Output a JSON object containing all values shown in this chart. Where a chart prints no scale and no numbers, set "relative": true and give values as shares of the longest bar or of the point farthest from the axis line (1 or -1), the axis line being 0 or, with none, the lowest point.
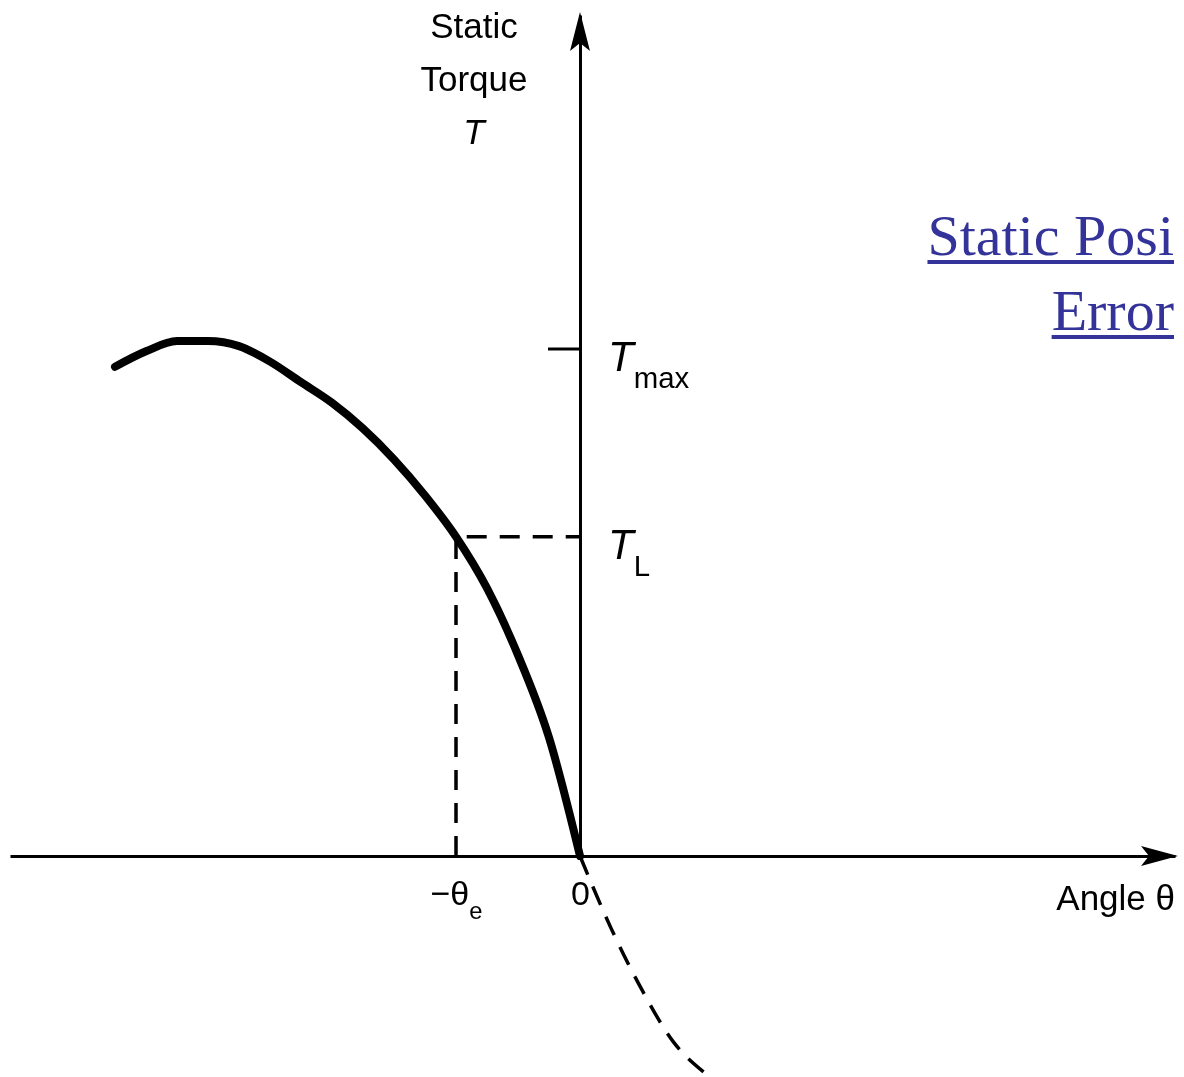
{
  "chart_data": {
    "type": "line",
    "relative": true,
    "categories": [
      null,
      null,
      null,
      null,
      null,
      null,
      null,
      null,
      null,
      null,
      null,
      "−θ$_{e}$",
      null,
      null,
      null,
      "0",
      null,
      null,
      null,
      null
    ],
    "series": [
      {
        "color": "#000000",
        "line_style": "solid",
        "values": [
          0.95,
          0.98,
          1,
          1,
          0.99,
          0.96,
          0.92,
          0.88,
          0.83,
          0.77,
          0.7,
          0.62,
          0.52,
          0.39,
          0.23,
          0,
          null,
          null,
          null,
          null
        ]
      },
      {
        "color": "#000000",
        "line_style": "dashed",
        "values": [
          null,
          null,
          null,
          null,
          null,
          null,
          null,
          null,
          null,
          null,
          null,
          null,
          null,
          null,
          null,
          0,
          -0.14,
          -0.26,
          -0.36,
          -0.42
        ]
      },
      {
        "color": "#000000",
        "line_style": "dashed",
        "x": [
          "−θ$_{e}$",
          "−θ$_{e}$",
          "0"
        ],
        "values": [
          0,
          0.62,
          0.62
        ]
      }
    ],
    "annotations": [
      "Static Torque T",
      "Static Posi Error",
      "T$_{max}$",
      {
        "text": "T$_{L}$",
        "x": "0",
        "y": 0.62
      },
      "Angle θ"
    ]
  }
}
